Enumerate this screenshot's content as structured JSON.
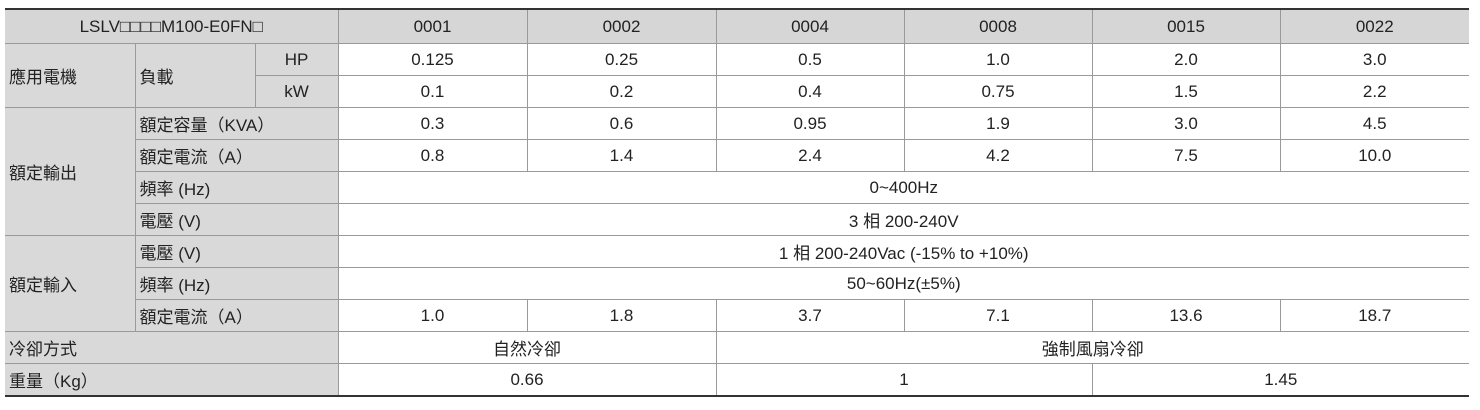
{
  "table": {
    "header": [
      "LSLV□□□□M100-E0FN□",
      "0001",
      "0002",
      "0004",
      "0008",
      "0015",
      "0022"
    ],
    "rows": [
      {
        "group": "應用電機",
        "label": "負載",
        "unit": "HP",
        "values": [
          "0.125",
          "0.25",
          "0.5",
          "1.0",
          "2.0",
          "3.0"
        ]
      },
      {
        "unit": "kW",
        "values": [
          "0.1",
          "0.2",
          "0.4",
          "0.75",
          "1.5",
          "2.2"
        ]
      },
      {
        "group": "額定輸出",
        "label": "額定容量（KVA）",
        "values": [
          "0.3",
          "0.6",
          "0.95",
          "1.9",
          "3.0",
          "4.5"
        ]
      },
      {
        "label": "額定電流（A）",
        "values": [
          "0.8",
          "1.4",
          "2.4",
          "4.2",
          "7.5",
          "10.0"
        ]
      },
      {
        "label": "頻率 (Hz)",
        "value": "0~400Hz"
      },
      {
        "label": "電壓 (V)",
        "value": "3 相 200-240V"
      },
      {
        "group": "額定輸入",
        "label": "電壓 (V)",
        "value": "1 相 200-240Vac (-15% to +10%)"
      },
      {
        "label": "頻率 (Hz)",
        "value": "50~60Hz(±5%)"
      },
      {
        "label": "額定電流（A）",
        "values": [
          "1.0",
          "1.8",
          "3.7",
          "7.1",
          "13.6",
          "18.7"
        ]
      },
      {
        "label": "冷卻方式",
        "values": [
          "自然冷卻",
          "強制風扇冷卻"
        ]
      },
      {
        "label": "重量（Kg）",
        "values": [
          "0.66",
          "1",
          "1.45"
        ]
      }
    ]
  }
}
